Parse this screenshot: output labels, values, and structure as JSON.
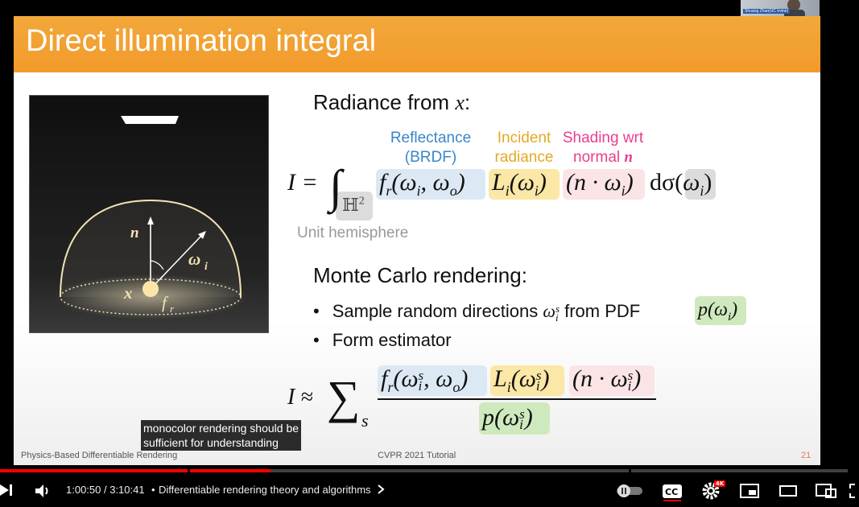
{
  "slide": {
    "title": "Direct illumination integral",
    "radiance_heading": "Radiance from ",
    "radiance_var": "x",
    "radiance_colon": ":",
    "labels": {
      "reflectance_l1": "Reflectance",
      "reflectance_l2": "(BRDF)",
      "incident_l1": "Incident",
      "incident_l2": "radiance",
      "shading_l1": "Shading wrt",
      "shading_l2": "normal ",
      "shading_n": "n",
      "unit_hemisphere": "Unit hemisphere"
    },
    "equation1": {
      "lhs": "I =",
      "integral": "∫",
      "domain": "ℍ",
      "domain_sup": "2",
      "fr": "f",
      "fr_sub": "r",
      "fr_args": "(ω",
      "fr_i": "i",
      "fr_args2": ", ω",
      "fr_o": "o",
      "fr_close": ")",
      "Li": "L",
      "Li_sub": "i",
      "Li_args": "(ω",
      "Li_i": "i",
      "Li_close": ")",
      "dot": "(n · ω",
      "dot_i": "i",
      "dot_close": ")",
      "dsigma": "dσ(",
      "omega": "ω",
      "omega_i": "i",
      "dsigma_close": ")"
    },
    "mc_heading": "Monte Carlo rendering:",
    "bullets": {
      "b1_pre": "Sample random directions ",
      "b1_omega": "ω",
      "b1_sub": "i",
      "b1_sup": "s",
      "b1_mid": " from PDF ",
      "b1_pdf": "p(ω",
      "b1_pdf_i": "i",
      "b1_pdf_close": ")",
      "b2": "Form estimator",
      "dot_char": "•"
    },
    "equation2": {
      "lhs": "I ≈",
      "sum": "∑",
      "sum_sub": "s",
      "num_fr": "f",
      "num_fr_sub": "r",
      "num_fr_args": "(ω",
      "num_fr_i": "i",
      "num_fr_s": "s",
      "num_fr_args2": ", ω",
      "num_fr_o": "o",
      "num_fr_close": ")",
      "num_Li": "L",
      "num_Li_sub": "i",
      "num_Li_args": "(ω",
      "num_Li_i": "i",
      "num_Li_s": "s",
      "num_Li_close": ")",
      "num_dot": "(n · ω",
      "num_dot_i": "i",
      "num_dot_s": "s",
      "num_dot_close": ")",
      "den": "p(ω",
      "den_i": "i",
      "den_s": "s",
      "den_close": ")"
    },
    "figure": {
      "n_label": "n",
      "omega_label": "ω",
      "omega_sub": "i",
      "x_label": "x",
      "fr_label": "f",
      "fr_sub": "r"
    },
    "footer_left": "Physics-Based Differentiable Rendering",
    "footer_center": "CVPR 2021 Tutorial",
    "page_number": "21"
  },
  "caption": {
    "line1": "monocolor rendering should be",
    "line2": "sufficient for understanding"
  },
  "webcam": {
    "label": "Shuang Zhao(UC Irvine)"
  },
  "player": {
    "current_time": "1:00:50",
    "time_sep": " / ",
    "duration": "3:10:41",
    "chapter_sep": "•",
    "chapter_title": "Differentiable rendering theory and algorithms",
    "progress_fraction": 0.319,
    "buffer_fraction": 0.298,
    "quality_badge": "4K",
    "colors": {
      "progress": "#ff0000",
      "header_orange": "#f39a2c",
      "hl_blue": "#dce9f5",
      "hl_yellow": "#fbe7a6",
      "hl_pink": "#fbe4e6",
      "hl_green": "#cfe9bf",
      "hl_gray": "#dcdcdc"
    }
  }
}
